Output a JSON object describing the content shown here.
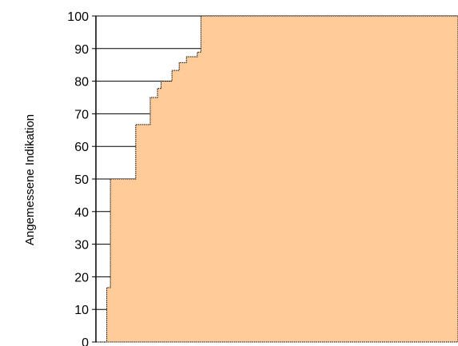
{
  "chart_data": {
    "type": "area",
    "title": "",
    "xlabel": "",
    "ylabel": "Angemessene Indikation",
    "ylim": [
      0,
      100
    ],
    "yticks": [
      0,
      10,
      20,
      30,
      40,
      50,
      60,
      70,
      80,
      90,
      100
    ],
    "grid": "horizontal lines at y tick values, visible only in unfilled region",
    "legend": "none",
    "series": [
      {
        "steps": [
          {
            "x": 0.0,
            "y": 0
          },
          {
            "x": 0.03,
            "y": 16.7
          },
          {
            "x": 0.04,
            "y": 50
          },
          {
            "x": 0.11,
            "y": 66.7
          },
          {
            "x": 0.15,
            "y": 75
          },
          {
            "x": 0.17,
            "y": 77.8
          },
          {
            "x": 0.18,
            "y": 80
          },
          {
            "x": 0.21,
            "y": 83.3
          },
          {
            "x": 0.23,
            "y": 85.7
          },
          {
            "x": 0.25,
            "y": 87.5
          },
          {
            "x": 0.28,
            "y": 88.9
          },
          {
            "x": 0.29,
            "y": 100
          },
          {
            "x": 1.0,
            "y": 100
          }
        ]
      }
    ],
    "colors": {
      "fill": "#FFCC99",
      "outline": "#000000",
      "grid": "#000000",
      "background": "#FFFFFF"
    }
  }
}
